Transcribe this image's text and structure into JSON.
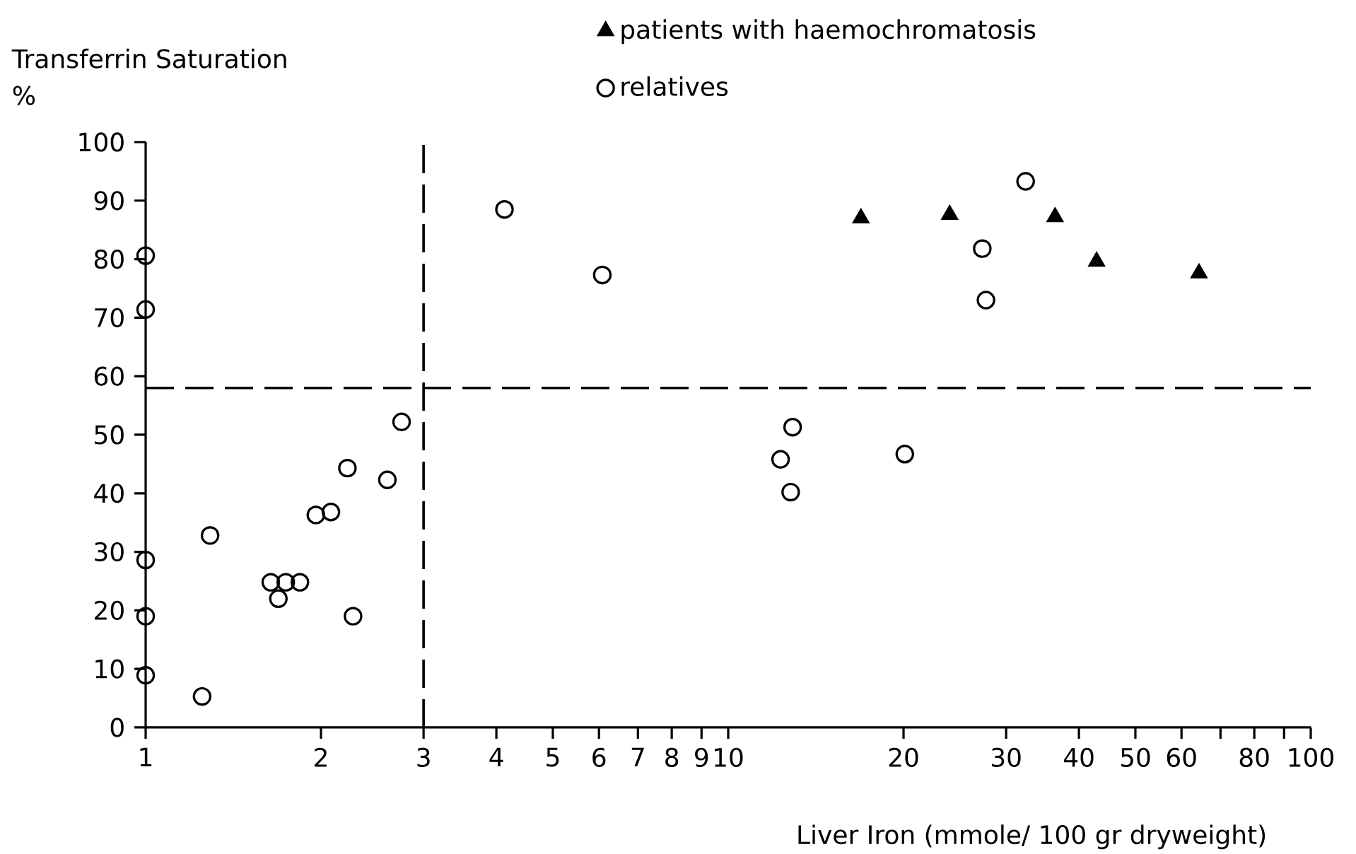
{
  "chart_data": {
    "type": "scatter",
    "xlabel": "Liver Iron (mmole/ 100 gr dryweight)",
    "ylabel": "Transferrin Saturation %",
    "log": "x",
    "xlim": [
      1,
      100
    ],
    "ylim": [
      0,
      100
    ],
    "xticks": [
      1,
      2,
      3,
      4,
      5,
      6,
      7,
      8,
      9,
      10,
      20,
      30,
      40,
      50,
      60,
      {
        "value": 70,
        "label": null
      },
      80,
      {
        "value": 90,
        "label": null
      },
      100
    ],
    "yticks": [
      0,
      10,
      20,
      30,
      40,
      50,
      60,
      70,
      80,
      90,
      100
    ],
    "legend": "top right",
    "series": [
      {
        "name": "patients with haemochromatosis",
        "color": "#000000",
        "marker": "triangle",
        "x": [
          16.9,
          24.0,
          36.4,
          42.9,
          64.3
        ],
        "values": [
          87.0,
          87.6,
          87.2,
          79.6,
          77.6
        ]
      },
      {
        "name": "relatives",
        "color": "#000000",
        "marker": "circle",
        "x": [
          1,
          1,
          2.75,
          2.22,
          2.6,
          1.96,
          2.08,
          1.29,
          1,
          1.64,
          1.74,
          1.84,
          1.69,
          2.27,
          1,
          1,
          1.25,
          4.13,
          6.08,
          12.9,
          12.3,
          12.8,
          20.1,
          32.4,
          27.3,
          27.7
        ],
        "values": [
          80.6,
          71.4,
          52.2,
          44.3,
          42.3,
          36.3,
          36.8,
          32.8,
          28.6,
          24.8,
          24.8,
          24.8,
          22.0,
          19.0,
          19.0,
          8.9,
          5.3,
          88.5,
          77.3,
          51.3,
          45.8,
          40.2,
          46.7,
          93.3,
          81.8,
          73.0
        ]
      }
    ],
    "ref_lines": [
      {
        "axis": "x",
        "value": 3,
        "line_style": "dashed"
      },
      {
        "axis": "y",
        "value": 58,
        "line_style": "dashed"
      }
    ]
  }
}
